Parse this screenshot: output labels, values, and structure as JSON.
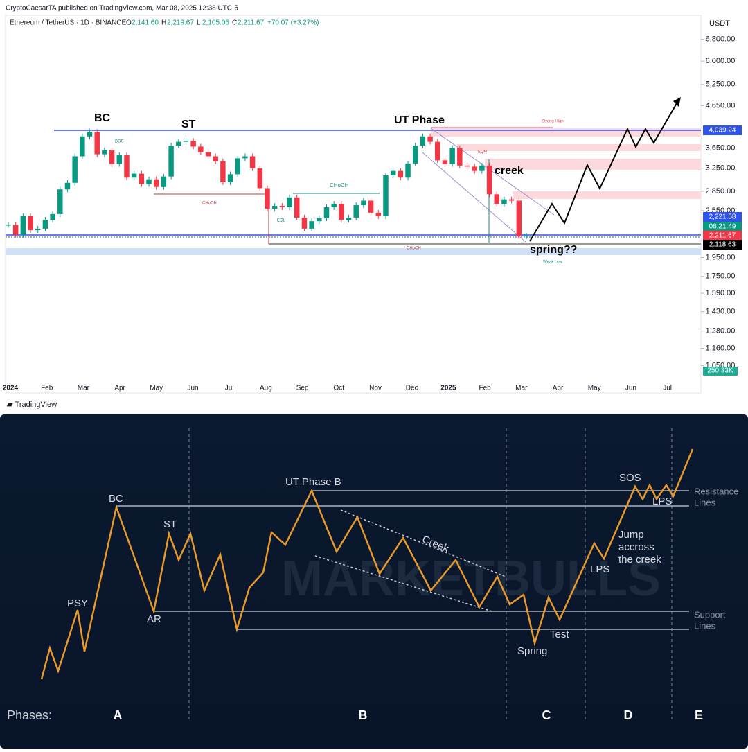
{
  "header": {
    "publisher": "CryptoCaesarTA published on TradingView.com, Mar 08, 2025 12:38 UTC-5",
    "symbol": "Ethereum / TetherUS · 1D · BINANCE",
    "ohlc": [
      "O",
      "2,141.60",
      "H",
      "2,219.67",
      "L",
      "2,105.06",
      "C",
      "2,211.67",
      "+70.07 (+3.27%)"
    ],
    "currency": "USDT"
  },
  "chart_data": {
    "type": "candlestick",
    "log_scale": true,
    "ylim": [
      980,
      7800
    ],
    "yticks": [
      {
        "value": 6800,
        "label": "6,800.00"
      },
      {
        "value": 6000,
        "label": "6,000.00"
      },
      {
        "value": 5250,
        "label": "5,250.00"
      },
      {
        "value": 4650,
        "label": "4,650.00"
      },
      {
        "value": 3650,
        "label": "3,650.00"
      },
      {
        "value": 3250,
        "label": "3,250.00"
      },
      {
        "value": 2850,
        "label": "2,850.00"
      },
      {
        "value": 2550,
        "label": "2,550.00"
      },
      {
        "value": 1950,
        "label": "1,950.00"
      },
      {
        "value": 1750,
        "label": "1,750.00"
      },
      {
        "value": 1590,
        "label": "1,590.00"
      },
      {
        "value": 1430,
        "label": "1,430.00"
      },
      {
        "value": 1280,
        "label": "1,280.00"
      },
      {
        "value": 1160,
        "label": "1,160.00"
      },
      {
        "value": 1050,
        "label": "1,050.00"
      }
    ],
    "x_labels": [
      "2024",
      "Feb",
      "Mar",
      "Apr",
      "May",
      "Jun",
      "Jul",
      "Aug",
      "Sep",
      "Oct",
      "Nov",
      "Dec",
      "2025",
      "Feb",
      "Mar",
      "Apr",
      "May",
      "Jun",
      "Jul"
    ],
    "series": [
      {
        "colors": [
          "#089981",
          "#f23645"
        ],
        "values": [
          2350,
          2220,
          2470,
          2280,
          2300,
          2420,
          2500,
          2880,
          2990,
          3480,
          3900,
          4000,
          3520,
          3600,
          3330,
          3500,
          3080,
          3150,
          2970,
          3050,
          2920,
          3100,
          3700,
          3780,
          3800,
          3680,
          3560,
          3480,
          3380,
          3000,
          3140,
          3440,
          3480,
          3250,
          2900,
          2580,
          2620,
          2600,
          2750,
          2450,
          2300,
          2400,
          2440,
          2600,
          2650,
          2420,
          2450,
          2630,
          2700,
          2520,
          2470,
          3120,
          3200,
          3080,
          3340,
          3700,
          3900,
          3780,
          3400,
          3330,
          3650,
          3300,
          3280,
          3200,
          3300,
          2800,
          2650,
          2720,
          2700,
          2200,
          2211.67
        ]
      }
    ],
    "price_badges": [
      "4,039.24",
      "2,221.58",
      "06:21:49",
      "2,211.67",
      "2,118.63",
      "250.33K"
    ],
    "annotations": [
      "BC",
      "ST",
      "UT Phase",
      "creek",
      "spring??",
      "Strong High",
      "Weak Low",
      "BOS",
      "CHoCH",
      "EQH",
      "EQL"
    ]
  },
  "footer": "TradingView",
  "diagram": {
    "labels": [
      "PSY",
      "BC",
      "AR",
      "ST",
      "UT Phase B",
      "Creek",
      "SOS",
      "LPS",
      "Jump",
      "accross",
      "the creek",
      "LPS",
      "Test",
      "Spring",
      "Resistance",
      "Lines",
      "Support",
      "Lines"
    ],
    "watermark": "MARKETBULLS",
    "phases_title": "Phases:",
    "phases": [
      "A",
      "B",
      "C",
      "D",
      "E"
    ]
  }
}
